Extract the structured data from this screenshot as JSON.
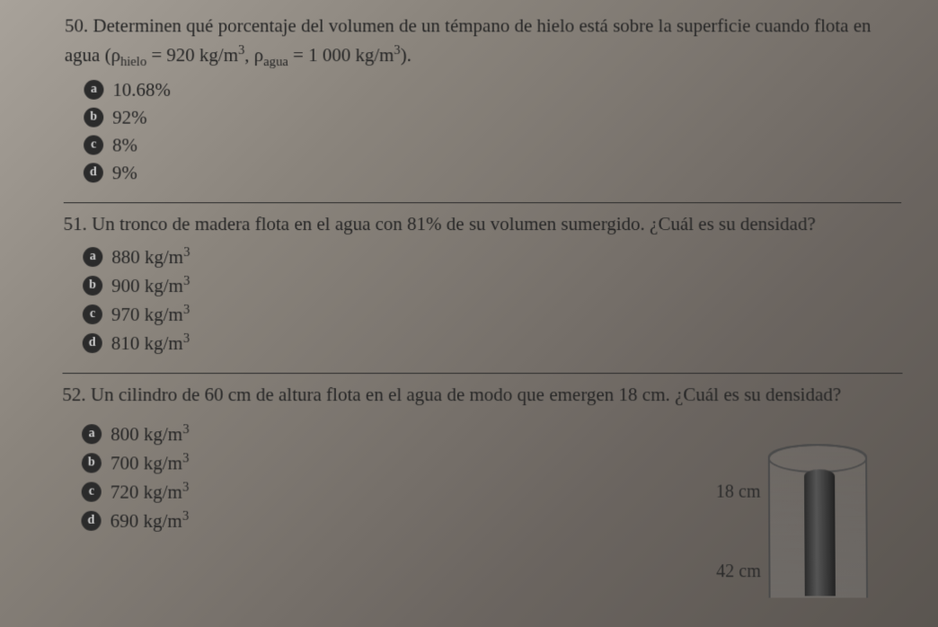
{
  "q50": {
    "number": "50.",
    "text_part1": "Determinen qué porcentaje del volumen de un témpano de hielo está sobre la superficie cuando flota en agua (ρ",
    "sub1": "hielo",
    "text_part2": " = 920 kg/m",
    "sup1": "3",
    "text_part3": ", ρ",
    "sub2": "agua",
    "text_part4": " = 1 000 kg/m",
    "sup2": "3",
    "text_part5": ").",
    "options": {
      "a": "10.68%",
      "b": "92%",
      "c": "8%",
      "d": "9%"
    }
  },
  "q51": {
    "number": "51.",
    "text": "Un tronco de madera flota en el agua con 81% de su volumen sumergido. ¿Cuál es su densidad?",
    "options": {
      "a": {
        "val": "880 kg/m",
        "sup": "3"
      },
      "b": {
        "val": "900 kg/m",
        "sup": "3"
      },
      "c": {
        "val": "970 kg/m",
        "sup": "3"
      },
      "d": {
        "val": "810 kg/m",
        "sup": "3"
      }
    }
  },
  "q52": {
    "number": "52.",
    "text": "Un cilindro de 60 cm de altura flota en el agua de modo que emergen 18 cm. ¿Cuál es su densidad?",
    "options": {
      "a": {
        "val": "800 kg/m",
        "sup": "3"
      },
      "b": {
        "val": "700 kg/m",
        "sup": "3"
      },
      "c": {
        "val": "720 kg/m",
        "sup": "3"
      },
      "d": {
        "val": "690 kg/m",
        "sup": "3"
      }
    },
    "diagram": {
      "label18": "18 cm",
      "label42": "42 cm"
    }
  },
  "bullets": {
    "a": "a",
    "b": "b",
    "c": "c",
    "d": "d"
  }
}
